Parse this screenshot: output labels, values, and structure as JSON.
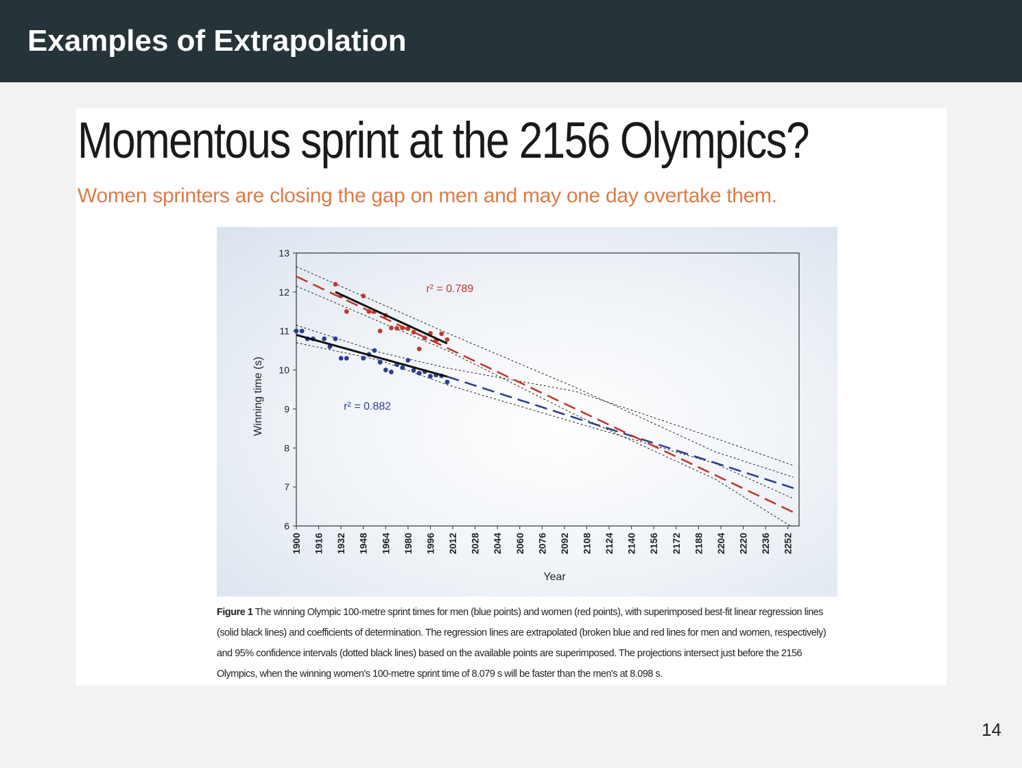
{
  "slide": {
    "title": "Examples of Extrapolation",
    "page_number": "14"
  },
  "figure": {
    "headline": "Momentous sprint at the 2156 Olympics?",
    "subheadline": "Women sprinters are closing the gap on men and may one day overtake them.",
    "caption_label": "Figure 1",
    "caption_text": "The winning Olympic 100-metre sprint times for men (blue points) and women (red points), with superimposed best-fit linear regression lines (solid black lines) and coefficients of determination. The regression lines are extrapolated (broken blue and red lines for men and women, respectively) and 95% confidence intervals (dotted black lines) based on the available points are superimposed. The projections intersect just before the 2156 Olympics, when the winning women's 100-metre sprint time of 8.079 s will be faster than the men's at 8.098 s."
  },
  "colors": {
    "header_bg": "#263338",
    "women": "#c0392b",
    "men": "#2c3e91",
    "subhead": "#dd7b45"
  },
  "chart_data": {
    "type": "scatter",
    "title": "",
    "xlabel": "Year",
    "ylabel": "Winning time (s)",
    "xlim": [
      1900,
      2260
    ],
    "ylim": [
      6,
      13
    ],
    "x_ticks": [
      1900,
      1916,
      1932,
      1948,
      1964,
      1980,
      1996,
      2012,
      2028,
      2044,
      2060,
      2076,
      2092,
      2108,
      2124,
      2140,
      2156,
      2172,
      2188,
      2204,
      2220,
      2236,
      2252
    ],
    "y_ticks": [
      6,
      7,
      8,
      9,
      10,
      11,
      12,
      13
    ],
    "grid": false,
    "series": [
      {
        "key": "men",
        "color": "#2c3e91",
        "points": [
          [
            1900,
            11.0
          ],
          [
            1904,
            11.0
          ],
          [
            1908,
            10.8
          ],
          [
            1912,
            10.8
          ],
          [
            1920,
            10.8
          ],
          [
            1924,
            10.6
          ],
          [
            1928,
            10.8
          ],
          [
            1932,
            10.3
          ],
          [
            1936,
            10.3
          ],
          [
            1948,
            10.3
          ],
          [
            1952,
            10.4
          ],
          [
            1956,
            10.5
          ],
          [
            1960,
            10.2
          ],
          [
            1964,
            10.0
          ],
          [
            1968,
            9.95
          ],
          [
            1972,
            10.14
          ],
          [
            1976,
            10.06
          ],
          [
            1980,
            10.25
          ],
          [
            1984,
            9.99
          ],
          [
            1988,
            9.92
          ],
          [
            1992,
            9.96
          ],
          [
            1996,
            9.84
          ],
          [
            2000,
            9.87
          ],
          [
            2004,
            9.85
          ],
          [
            2008,
            9.69
          ]
        ],
        "fit": {
          "x_start": 1900,
          "y_start": 10.9,
          "x_end": 2008,
          "y_end": 9.83
        },
        "extrapolation": {
          "x_start": 2008,
          "y_start": 9.83,
          "x_end": 2256,
          "y_end": 6.97
        },
        "ci_upper": [
          [
            1900,
            11.15
          ],
          [
            1960,
            10.45
          ],
          [
            2008,
            10.05
          ],
          [
            2100,
            9.45
          ],
          [
            2200,
            8.25
          ],
          [
            2256,
            7.55
          ]
        ],
        "ci_lower": [
          [
            1900,
            10.7
          ],
          [
            1960,
            10.25
          ],
          [
            2008,
            9.62
          ],
          [
            2100,
            8.65
          ],
          [
            2200,
            7.6
          ],
          [
            2256,
            6.7
          ]
        ],
        "annotation": {
          "text": "r² = 0.882",
          "x": 1934,
          "y": 8.98
        }
      },
      {
        "key": "women",
        "color": "#c0392b",
        "points": [
          [
            1928,
            12.2
          ],
          [
            1932,
            11.9
          ],
          [
            1936,
            11.5
          ],
          [
            1948,
            11.9
          ],
          [
            1952,
            11.5
          ],
          [
            1956,
            11.5
          ],
          [
            1960,
            11.0
          ],
          [
            1964,
            11.4
          ],
          [
            1968,
            11.08
          ],
          [
            1972,
            11.07
          ],
          [
            1976,
            11.08
          ],
          [
            1980,
            11.06
          ],
          [
            1984,
            10.97
          ],
          [
            1988,
            10.54
          ],
          [
            1992,
            10.82
          ],
          [
            1996,
            10.94
          ],
          [
            2000,
            10.75
          ],
          [
            2004,
            10.93
          ],
          [
            2008,
            10.78
          ]
        ],
        "fit": {
          "x_start": 1928,
          "y_start": 12.0,
          "x_end": 2008,
          "y_end": 10.68
        },
        "extrapolation": {
          "x_start": 1900,
          "y_start": 12.4,
          "x_end": 2256,
          "y_end": 6.35
        },
        "ci_upper": [
          [
            1900,
            12.65
          ],
          [
            2008,
            10.95
          ],
          [
            2100,
            9.55
          ],
          [
            2200,
            7.9
          ],
          [
            2256,
            7.25
          ]
        ],
        "ci_lower": [
          [
            1900,
            12.15
          ],
          [
            2008,
            10.5
          ],
          [
            2100,
            8.85
          ],
          [
            2200,
            7.2
          ],
          [
            2256,
            5.95
          ]
        ],
        "annotation": {
          "text": "r² = 0.789",
          "x": 1993,
          "y": 12.0
        }
      }
    ]
  }
}
